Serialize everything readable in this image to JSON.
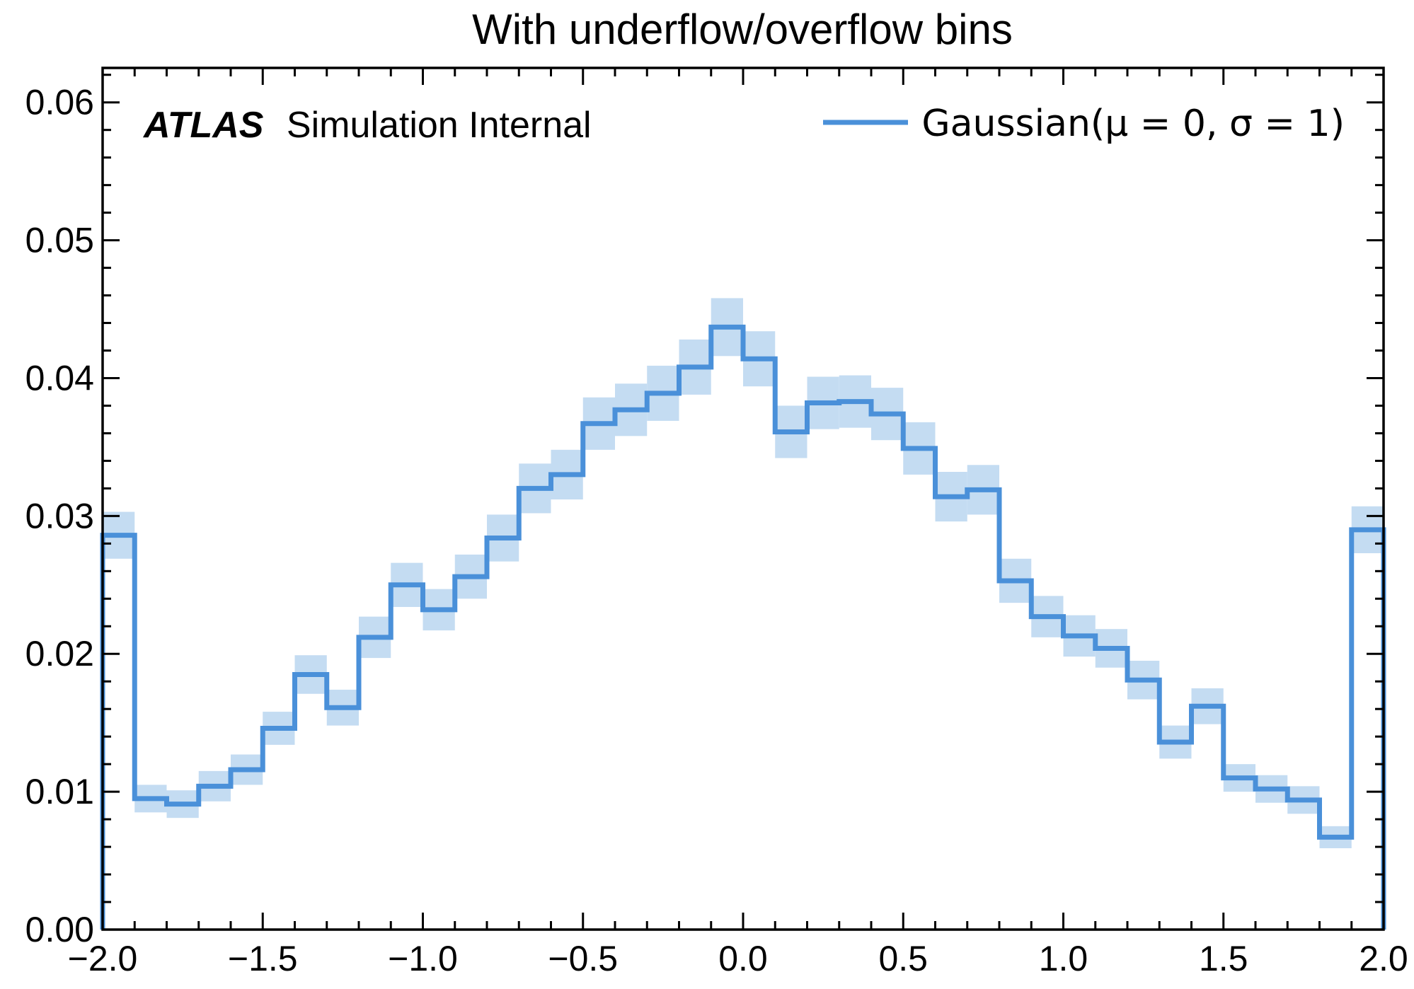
{
  "chart_data": {
    "type": "histogram-step",
    "title": "With underflow/overflow bins",
    "xlabel": "",
    "ylabel": "",
    "xlim": [
      -2.0,
      2.0
    ],
    "ylim": [
      0.0,
      0.0625
    ],
    "x_ticks": [
      -2.0,
      -1.5,
      -1.0,
      -0.5,
      0.0,
      0.5,
      1.0,
      1.5,
      2.0
    ],
    "x_tick_labels": [
      "−2.0",
      "−1.5",
      "−1.0",
      "−0.5",
      "0.0",
      "0.5",
      "1.0",
      "1.5",
      "2.0"
    ],
    "y_ticks": [
      0.0,
      0.01,
      0.02,
      0.03,
      0.04,
      0.05,
      0.06
    ],
    "y_tick_labels": [
      "0.00",
      "0.01",
      "0.02",
      "0.03",
      "0.04",
      "0.05",
      "0.06"
    ],
    "bin_edges": [
      -2.0,
      -1.9,
      -1.8,
      -1.7,
      -1.6,
      -1.5,
      -1.4,
      -1.3,
      -1.2,
      -1.1,
      -1.0,
      -0.9,
      -0.8,
      -0.7,
      -0.6,
      -0.5,
      -0.4,
      -0.3,
      -0.2,
      -0.1,
      0.0,
      0.1,
      0.2,
      0.3,
      0.4,
      0.5,
      0.6,
      0.7,
      0.8,
      0.9,
      1.0,
      1.1,
      1.2,
      1.3,
      1.4,
      1.5,
      1.6,
      1.7,
      1.8,
      1.9,
      2.0
    ],
    "series": [
      {
        "name": "Gaussian(μ = 0, σ = 1)",
        "color": "#4a90d9",
        "band_color": "#c4dcf2",
        "values": [
          0.0286,
          0.0095,
          0.0091,
          0.0104,
          0.0116,
          0.0146,
          0.0185,
          0.0161,
          0.0212,
          0.025,
          0.0232,
          0.0256,
          0.0284,
          0.032,
          0.033,
          0.0367,
          0.0377,
          0.0389,
          0.0408,
          0.0437,
          0.0414,
          0.0361,
          0.0382,
          0.0383,
          0.0374,
          0.0349,
          0.0314,
          0.0319,
          0.0253,
          0.0227,
          0.0213,
          0.0204,
          0.0181,
          0.0136,
          0.0162,
          0.011,
          0.0102,
          0.0094,
          0.0067,
          0.029
        ],
        "uncertainty": [
          0.0017,
          0.001,
          0.001,
          0.0011,
          0.0011,
          0.0012,
          0.0014,
          0.0013,
          0.0015,
          0.0016,
          0.0015,
          0.0016,
          0.0017,
          0.0018,
          0.0018,
          0.0019,
          0.0019,
          0.002,
          0.002,
          0.0021,
          0.002,
          0.0019,
          0.0019,
          0.0019,
          0.0019,
          0.0019,
          0.0018,
          0.0018,
          0.0016,
          0.0015,
          0.0015,
          0.0014,
          0.0014,
          0.0012,
          0.0013,
          0.001,
          0.001,
          0.001,
          0.0008,
          0.0017
        ]
      }
    ],
    "legend": {
      "position": "top-right"
    },
    "grid": false,
    "annotations": {
      "experiment": "ATLAS",
      "status": "Simulation Internal"
    }
  }
}
